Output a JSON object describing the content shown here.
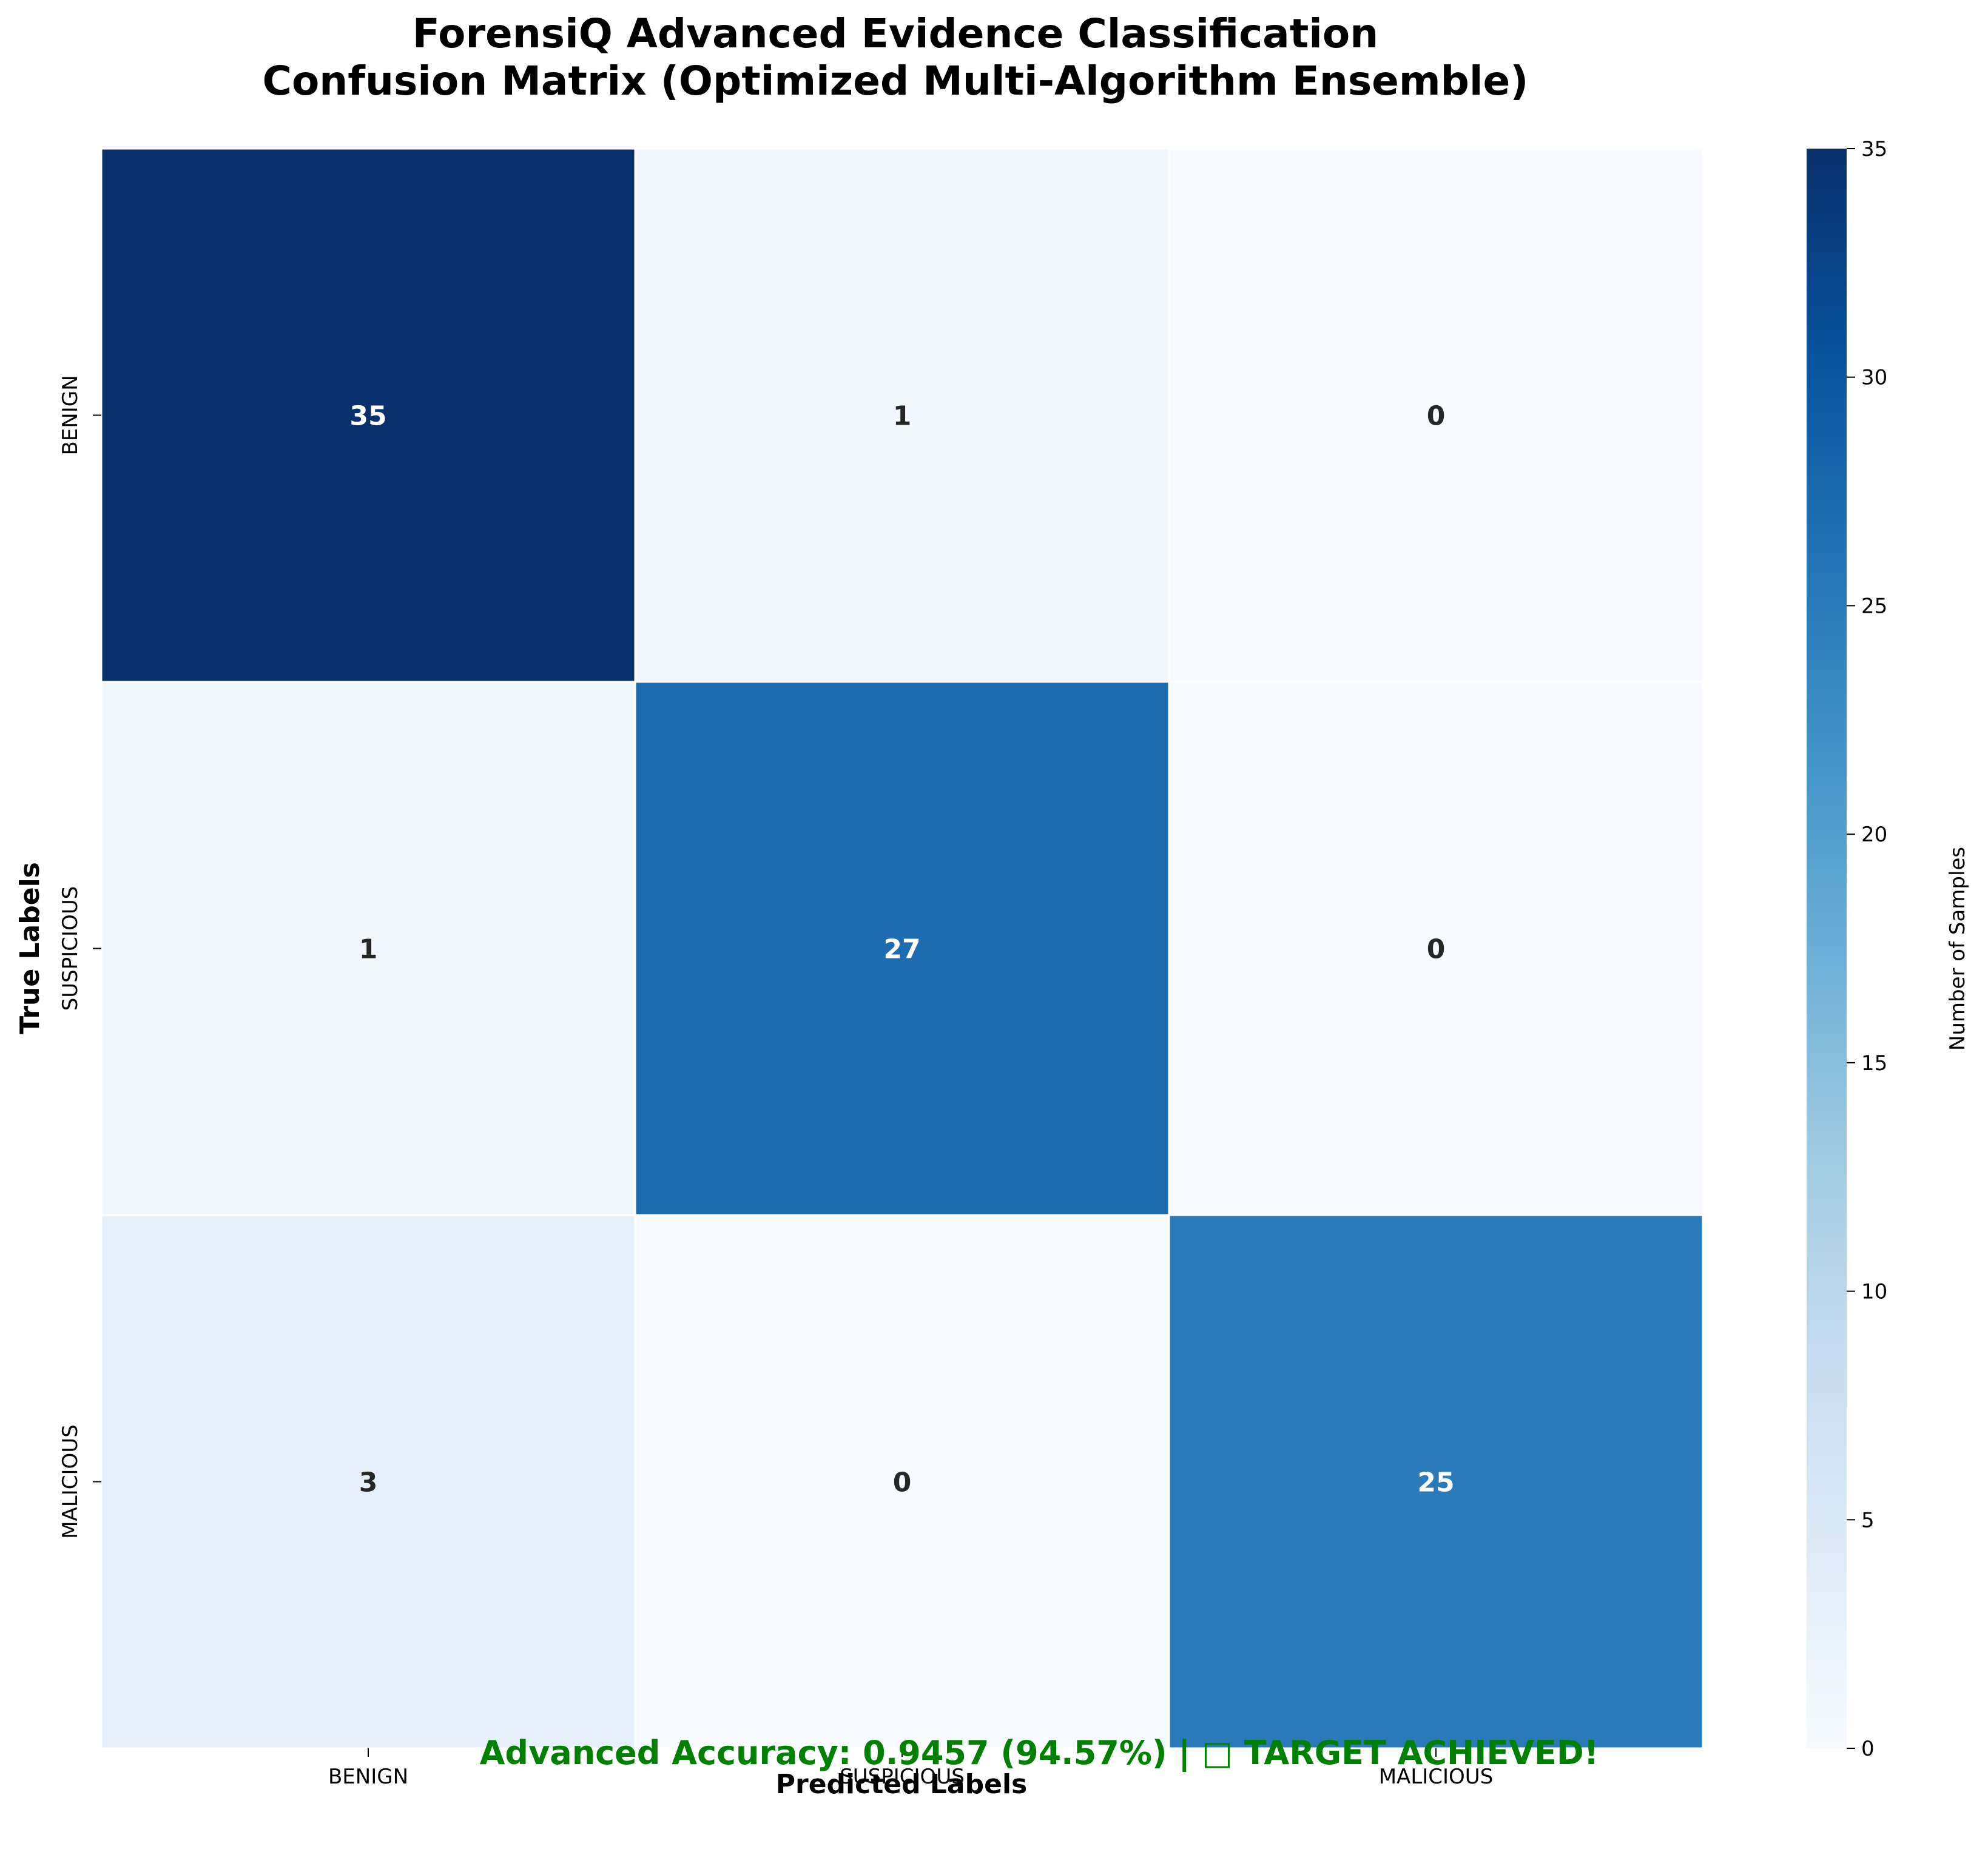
{
  "chart_data": {
    "type": "heatmap",
    "title_lines": [
      "ForensiQ Advanced Evidence Classification",
      "Confusion Matrix (Optimized Multi-Algorithm Ensemble)"
    ],
    "xlabel": "Predicted Labels",
    "ylabel": "True Labels",
    "x_categories": [
      "BENIGN",
      "SUSPICIOUS",
      "MALICIOUS"
    ],
    "y_categories": [
      "BENIGN",
      "SUSPICIOUS",
      "MALICIOUS"
    ],
    "matrix": [
      [
        35,
        1,
        0
      ],
      [
        1,
        27,
        0
      ],
      [
        3,
        0,
        25
      ]
    ],
    "colormap": "Blues",
    "colorbar": {
      "label": "Number of Samples",
      "range": [
        0,
        35
      ],
      "ticks": [
        0,
        5,
        10,
        15,
        20,
        25,
        30,
        35
      ]
    },
    "annotation": "Advanced Accuracy: 0.9457 (94.57%) | □ TARGET ACHIEVED!",
    "annotation_color": "#008000"
  }
}
